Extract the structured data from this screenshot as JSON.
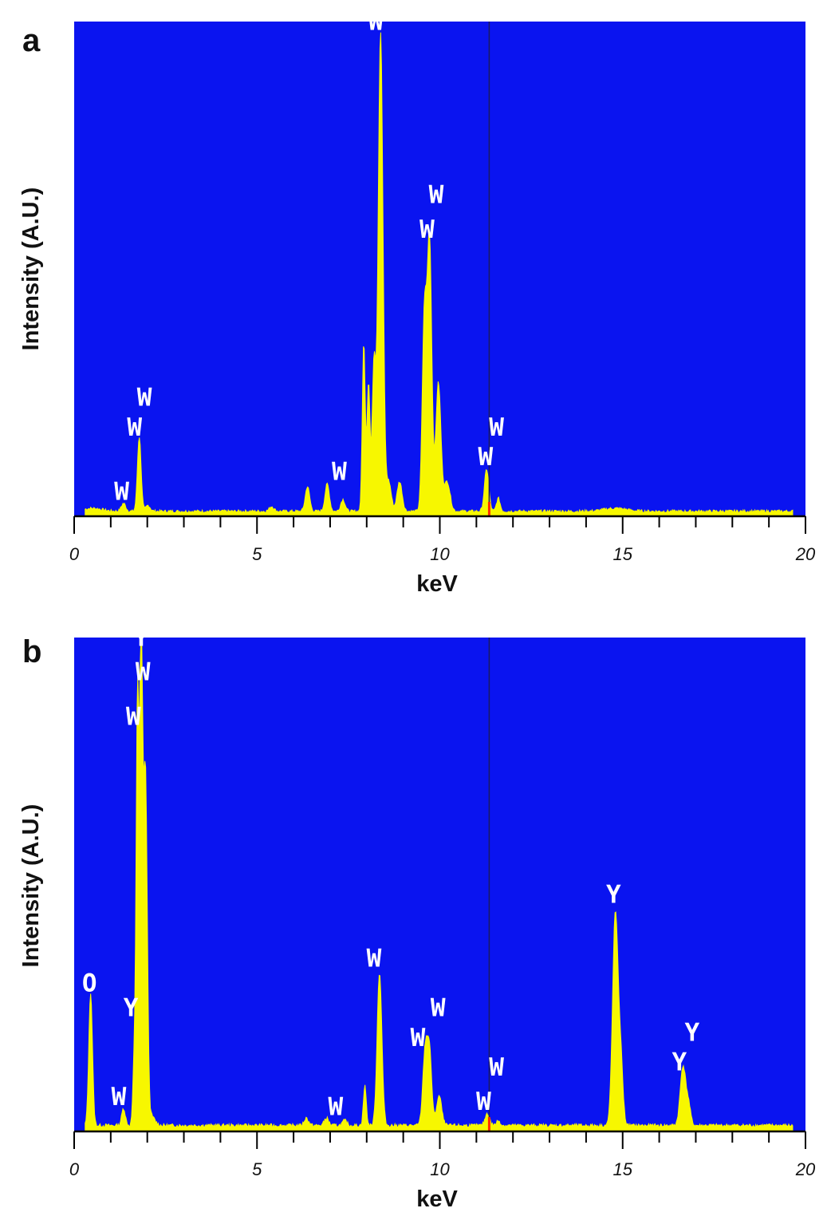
{
  "figure": {
    "colors": {
      "plot_background": "#0a14f0",
      "spectrum_fill": "#f7f700",
      "marker_line": "#1a1a60",
      "marker_tip": "#ff2a00",
      "label_text": "#ffffff",
      "axis": "#000000"
    }
  },
  "chart_data": [
    {
      "panel": "a",
      "type": "area",
      "title": "",
      "xlabel": "keV",
      "ylabel": "Intensity (A.U.)",
      "xlim": [
        0,
        20
      ],
      "ylim": [
        0,
        100
      ],
      "x_ticks": [
        "0",
        "5",
        "10",
        "15",
        "20"
      ],
      "grid": false,
      "marker_keV": 11.35,
      "peaks": [
        {
          "center": 0.5,
          "height": 0.6,
          "width": 0.25
        },
        {
          "center": 1.35,
          "height": 1.6,
          "width": 0.06
        },
        {
          "center": 1.78,
          "height": 15.1,
          "width": 0.05
        },
        {
          "center": 2.02,
          "height": 1.2,
          "width": 0.06
        },
        {
          "center": 5.4,
          "height": 1.0,
          "width": 0.06
        },
        {
          "center": 6.38,
          "height": 5.0,
          "width": 0.06
        },
        {
          "center": 6.92,
          "height": 5.5,
          "width": 0.06
        },
        {
          "center": 7.35,
          "height": 2.4,
          "width": 0.06
        },
        {
          "center": 7.92,
          "height": 34.0,
          "width": 0.04
        },
        {
          "center": 8.05,
          "height": 26.0,
          "width": 0.04
        },
        {
          "center": 8.2,
          "height": 30.0,
          "width": 0.05
        },
        {
          "center": 8.38,
          "height": 97.0,
          "width": 0.065
        },
        {
          "center": 8.6,
          "height": 6.0,
          "width": 0.07
        },
        {
          "center": 8.9,
          "height": 6.0,
          "width": 0.07
        },
        {
          "center": 9.58,
          "height": 40.0,
          "width": 0.06
        },
        {
          "center": 9.72,
          "height": 54.0,
          "width": 0.06
        },
        {
          "center": 9.96,
          "height": 26.0,
          "width": 0.07
        },
        {
          "center": 10.2,
          "height": 6.0,
          "width": 0.08
        },
        {
          "center": 11.28,
          "height": 8.5,
          "width": 0.06
        },
        {
          "center": 11.6,
          "height": 2.6,
          "width": 0.05
        },
        {
          "center": 14.8,
          "height": 0.6,
          "width": 0.3
        }
      ],
      "background": 1.0,
      "annotations": [
        {
          "text": "W",
          "x": 1.3,
          "y": 3
        },
        {
          "text": "W",
          "x": 1.65,
          "y": 16
        },
        {
          "text": "W",
          "x": 1.92,
          "y": 22
        },
        {
          "text": "W",
          "x": 7.25,
          "y": 7
        },
        {
          "text": "W",
          "x": 8.25,
          "y": 98
        },
        {
          "text": "W",
          "x": 9.65,
          "y": 56
        },
        {
          "text": "W",
          "x": 9.9,
          "y": 63
        },
        {
          "text": "W",
          "x": 11.25,
          "y": 10
        },
        {
          "text": "W",
          "x": 11.55,
          "y": 16
        }
      ]
    },
    {
      "panel": "b",
      "type": "area",
      "title": "",
      "xlabel": "keV",
      "ylabel": "Intensity (A.U.)",
      "xlim": [
        0,
        20
      ],
      "ylim": [
        0,
        100
      ],
      "x_ticks": [
        "0",
        "5",
        "10",
        "15",
        "20"
      ],
      "grid": false,
      "marker_keV": 11.35,
      "peaks": [
        {
          "center": 0.45,
          "height": 27.0,
          "width": 0.05
        },
        {
          "center": 1.35,
          "height": 3.5,
          "width": 0.05
        },
        {
          "center": 1.65,
          "height": 15.0,
          "width": 0.04
        },
        {
          "center": 1.73,
          "height": 80.0,
          "width": 0.035
        },
        {
          "center": 1.83,
          "height": 98.0,
          "width": 0.045
        },
        {
          "center": 1.95,
          "height": 70.0,
          "width": 0.05
        },
        {
          "center": 2.1,
          "height": 2.0,
          "width": 0.1
        },
        {
          "center": 6.35,
          "height": 1.5,
          "width": 0.06
        },
        {
          "center": 6.9,
          "height": 1.5,
          "width": 0.06
        },
        {
          "center": 7.4,
          "height": 1.0,
          "width": 0.06
        },
        {
          "center": 7.95,
          "height": 8.0,
          "width": 0.04
        },
        {
          "center": 8.35,
          "height": 31.0,
          "width": 0.065
        },
        {
          "center": 9.6,
          "height": 15.0,
          "width": 0.065
        },
        {
          "center": 9.72,
          "height": 14.0,
          "width": 0.06
        },
        {
          "center": 9.98,
          "height": 6.0,
          "width": 0.07
        },
        {
          "center": 11.3,
          "height": 2.5,
          "width": 0.06
        },
        {
          "center": 11.6,
          "height": 1.0,
          "width": 0.05
        },
        {
          "center": 14.8,
          "height": 43.0,
          "width": 0.075
        },
        {
          "center": 14.95,
          "height": 12.0,
          "width": 0.06
        },
        {
          "center": 16.65,
          "height": 12.0,
          "width": 0.075
        },
        {
          "center": 16.8,
          "height": 4.0,
          "width": 0.06
        }
      ],
      "background": 1.2,
      "annotations": [
        {
          "text": "O",
          "x": 0.42,
          "y": 28
        },
        {
          "text": "W",
          "x": 1.22,
          "y": 5
        },
        {
          "text": "Y",
          "x": 1.55,
          "y": 23
        },
        {
          "text": "W",
          "x": 1.62,
          "y": 82
        },
        {
          "text": "W",
          "x": 1.88,
          "y": 91
        },
        {
          "text": "Y",
          "x": 1.83,
          "y": 98
        },
        {
          "text": "W",
          "x": 7.15,
          "y": 3
        },
        {
          "text": "W",
          "x": 8.2,
          "y": 33
        },
        {
          "text": "W",
          "x": 9.4,
          "y": 17
        },
        {
          "text": "W",
          "x": 9.95,
          "y": 23
        },
        {
          "text": "W",
          "x": 11.2,
          "y": 4
        },
        {
          "text": "W",
          "x": 11.55,
          "y": 11
        },
        {
          "text": "Y",
          "x": 14.75,
          "y": 46
        },
        {
          "text": "Y",
          "x": 16.55,
          "y": 12
        },
        {
          "text": "Y",
          "x": 16.9,
          "y": 18
        }
      ]
    }
  ]
}
